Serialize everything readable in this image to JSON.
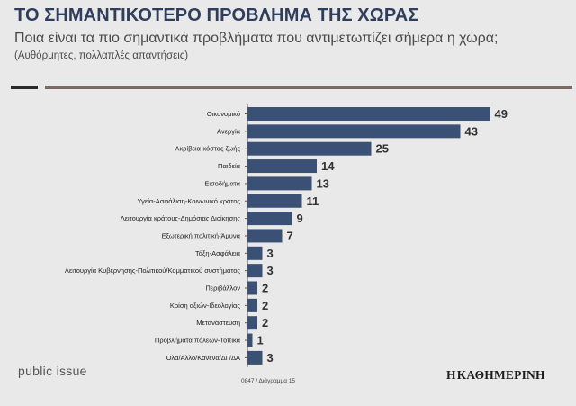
{
  "colors": {
    "bar": "#3b5075",
    "title": "#2e3e5c",
    "label": "#222222",
    "value": "#333333",
    "axis": "#555555",
    "rule_dark": "#2a2a2a",
    "rule_brown": "#7a6a66"
  },
  "header": {
    "title": "ΤΟ ΣΗΜΑΝΤΙΚΟΤΕΡΟ ΠΡΟΒΛΗΜΑ ΤΗΣ ΧΩΡΑΣ",
    "subtitle": "Ποια είναι τα πιο σημαντικά προβλήματα που αντιμετωπίζει σήμερα η χώρα;",
    "note": "(Αυθόρμητες, πολλαπλές απαντήσεις)"
  },
  "chart_data": {
    "type": "bar",
    "orientation": "horizontal",
    "title": "ΤΟ ΣΗΜΑΝΤΙΚΟΤΕΡΟ ΠΡΟΒΛΗΜΑ ΤΗΣ ΧΩΡΑΣ",
    "xlabel": "",
    "ylabel": "",
    "xlim": [
      0,
      50
    ],
    "grid": false,
    "categories": [
      "Οικονομικό",
      "Ανεργία",
      "Ακρίβεια-κόστος ζωής",
      "Παιδεία",
      "Εισοδήματα",
      "Υγεία-Ασφάλιση-Κοινωνικό κράτος",
      "Λειτουργία κράτους-Δημόσιας Διοίκησης",
      "Εξωτερική πολιτική-Άμυνα",
      "Τάξη-Ασφάλεια",
      "Λειτουργία Κυβέρνησης-Πολιτικού/Κομματικού συστήματος",
      "Περιβάλλον",
      "Κρίση αξιών-Ιδεολογίας",
      "Μετανάστευση",
      "Προβλήματα πόλεων-Τοπικά",
      "Όλα/Άλλο/Κανένα/ΔΓ/ΔΑ"
    ],
    "values": [
      49,
      43,
      25,
      14,
      13,
      11,
      9,
      7,
      3,
      3,
      2,
      2,
      2,
      1,
      3
    ]
  },
  "footer": {
    "brand_left": "public issue",
    "footnote": "0847 / Διάγραμμα 15",
    "brand_right_mark": "Η",
    "brand_right": "ΚΑΘΗΜΕΡΙΝΗ"
  }
}
